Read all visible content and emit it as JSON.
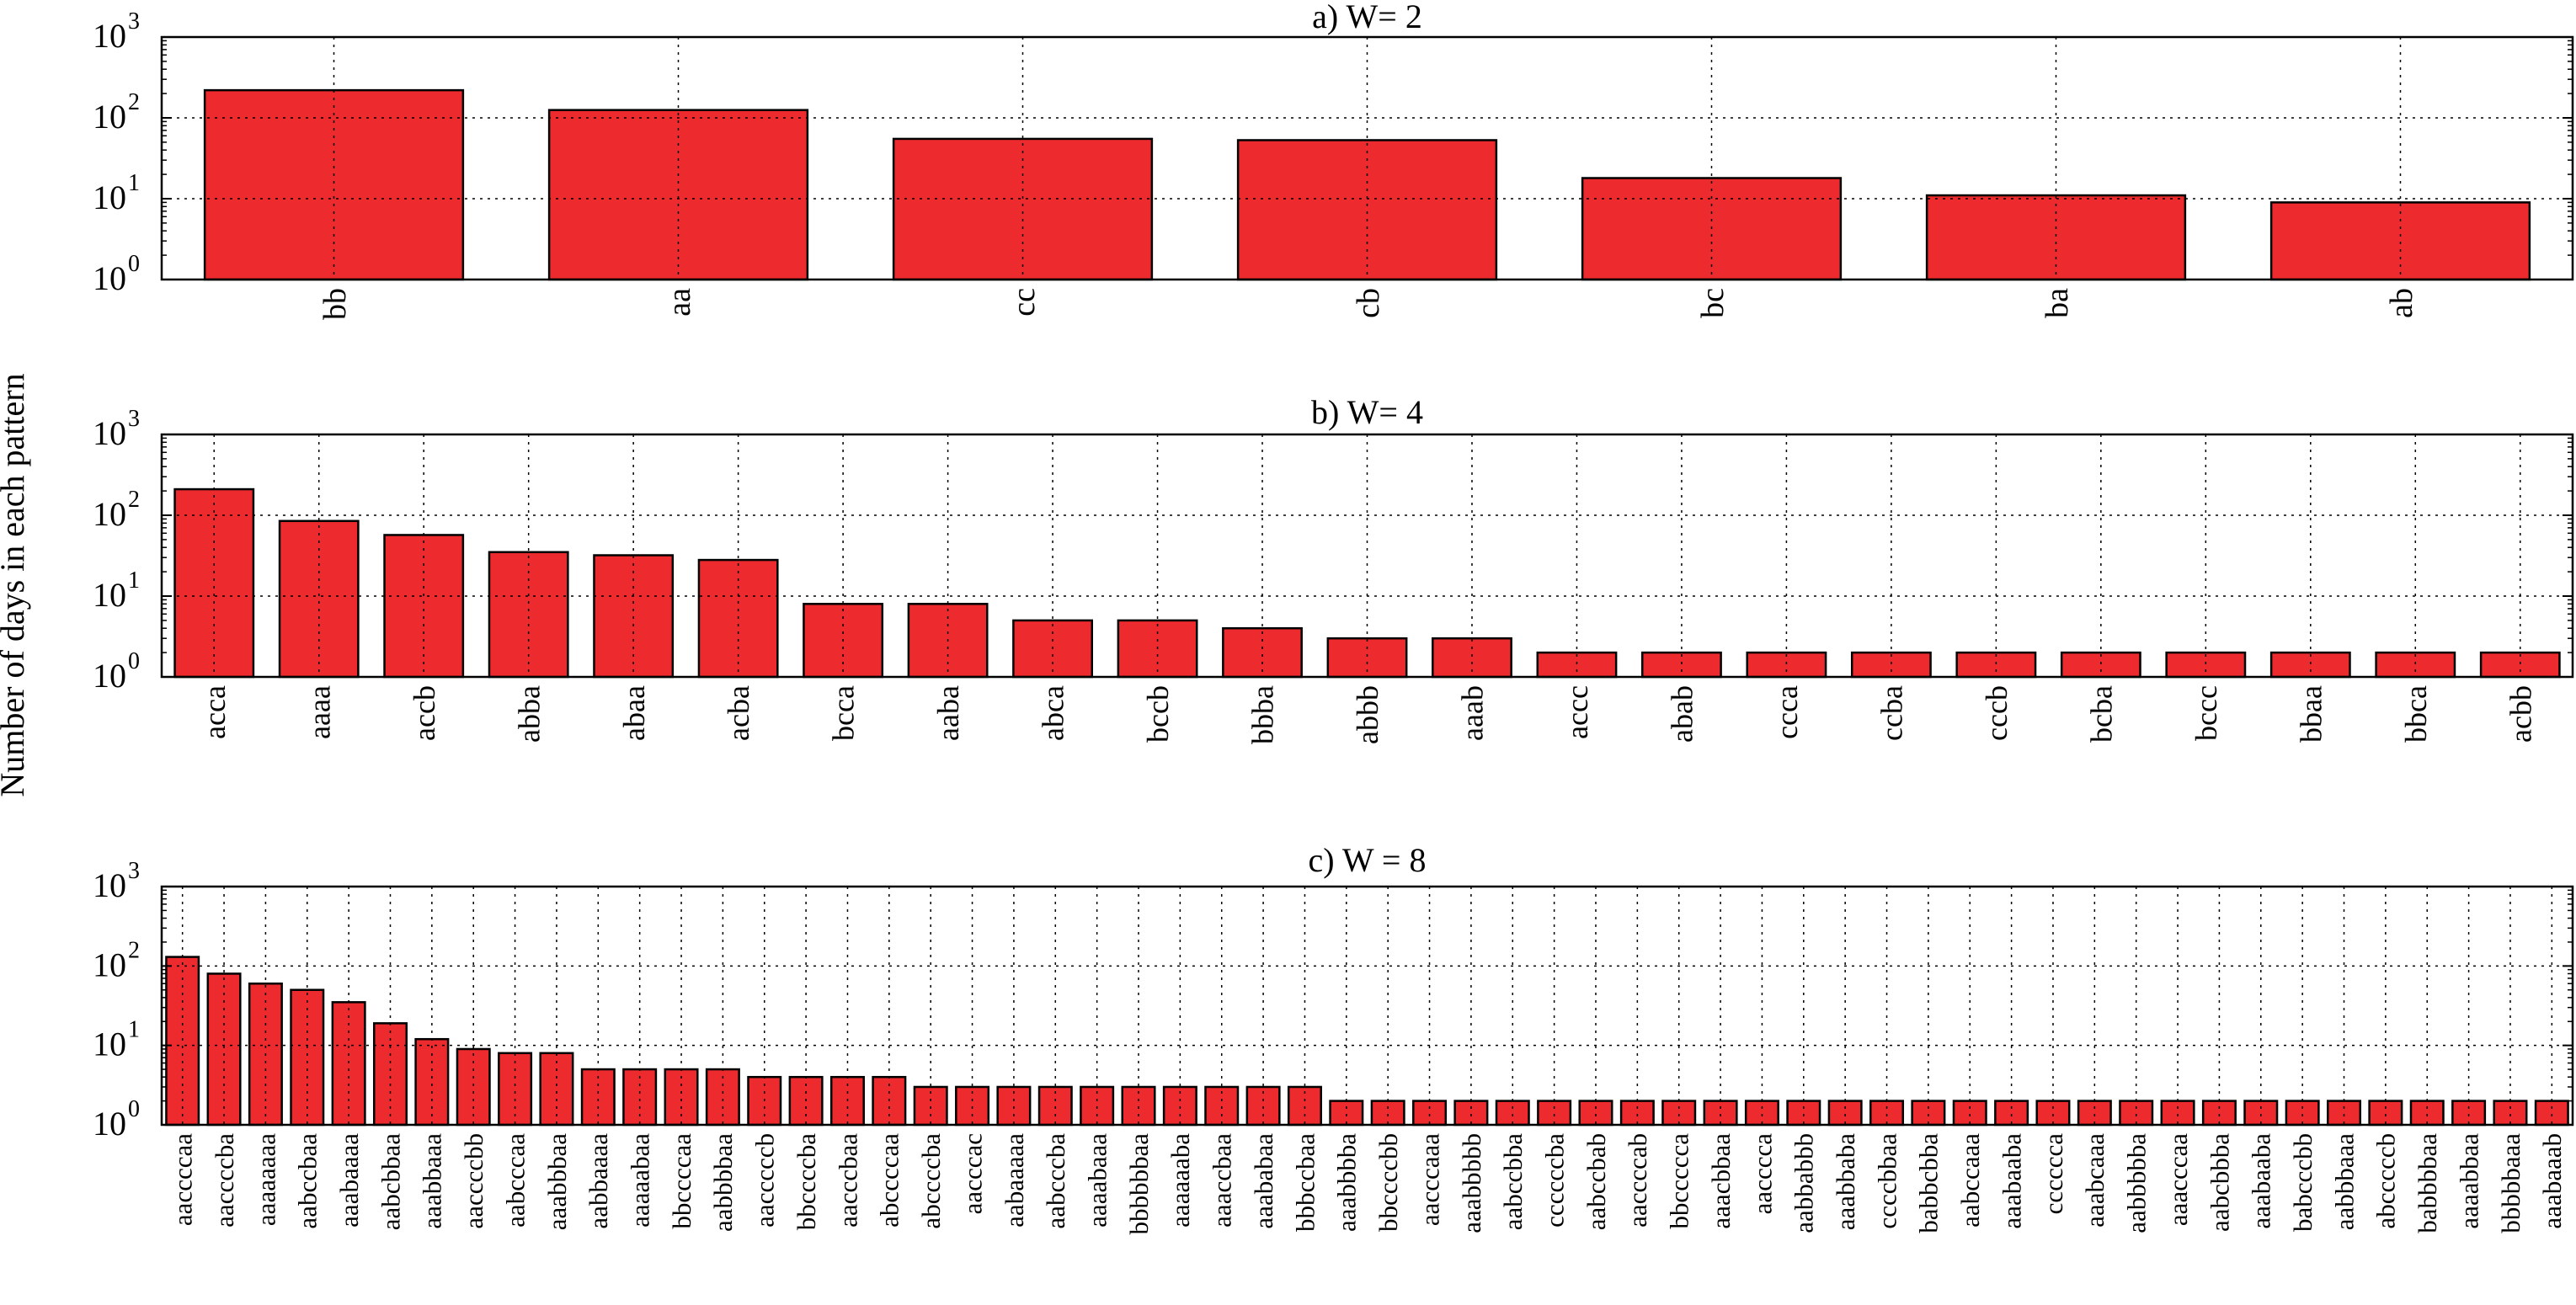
{
  "ylabel": "Number of days in each pattern",
  "tick_labels": {
    "base": "10",
    "exponents": [
      "0",
      "1",
      "2",
      "3"
    ]
  },
  "colors": {
    "bar": "#ed2b2e",
    "edge": "#000000",
    "grid": "#000000"
  },
  "chart_data": [
    {
      "type": "bar",
      "title": "a) W= 2",
      "xlabel": "",
      "ylabel": "Number of days in each pattern",
      "yscale": "log",
      "ylim": [
        1,
        1000
      ],
      "grid": true,
      "categories": [
        "bb",
        "aa",
        "cc",
        "cb",
        "bc",
        "ba",
        "ab"
      ],
      "values": [
        220,
        125,
        55,
        53,
        18,
        11,
        9
      ]
    },
    {
      "type": "bar",
      "title": "b) W= 4",
      "xlabel": "",
      "ylabel": "Number of days in each pattern",
      "yscale": "log",
      "ylim": [
        1,
        1000
      ],
      "grid": true,
      "categories": [
        "acca",
        "aaaa",
        "accb",
        "abba",
        "abaa",
        "acba",
        "bcca",
        "aaba",
        "abca",
        "bccb",
        "bbba",
        "abbb",
        "aaab",
        "accc",
        "abab",
        "ccca",
        "ccba",
        "cccb",
        "bcba",
        "bccc",
        "bbaa",
        "bbca",
        "acbb"
      ],
      "values": [
        210,
        85,
        57,
        35,
        32,
        28,
        8,
        8,
        5,
        5,
        4,
        3,
        3,
        2,
        2,
        2,
        2,
        2,
        2,
        2,
        2,
        2,
        2
      ]
    },
    {
      "type": "bar",
      "title": "c) W = 8",
      "xlabel": "",
      "ylabel": "Number of days in each pattern",
      "yscale": "log",
      "ylim": [
        1,
        1000
      ],
      "grid": true,
      "categories": [
        "aaccccaa",
        "aaccccba",
        "aaaaaaaa",
        "aabccbaa",
        "aaabaaaa",
        "aabcbbaa",
        "aaabbaaa",
        "aaccccbb",
        "aabcccaa",
        "aaabbbaa",
        "aabbaaaa",
        "aaaaabaa",
        "bbccccaa",
        "aabbbbaa",
        "aacccccb",
        "bbccccba",
        "aacccbaa",
        "abccccaa",
        "abccccba",
        "aacccac",
        "aabaaaaa",
        "aabcccba",
        "aaaabaaa",
        "bbbbbbaa",
        "aaaaaaba",
        "aaaccbaa",
        "aaababaa",
        "bbbccbaa",
        "aaabbbba",
        "bbccccbb",
        "aacccaaa",
        "aaabbbbb",
        "aabccbba",
        "ccccccba",
        "aabccbab",
        "aaccccab",
        "bbccccca",
        "aaacbbaa",
        "aacccca",
        "aabbabbb",
        "aaabbaba",
        "ccccbbaa",
        "babbcbba",
        "aabccaaa",
        "aaabaaba",
        "cccccca",
        "aaabcaaa",
        "aabbbbba",
        "aaacccaa",
        "aabcbbba",
        "aaabaaba",
        "babcccbb",
        "aabbbaaa",
        "abcccccb",
        "babbbbaa",
        "aaaabbaa",
        "bbbbbaaa",
        "aaabaaab"
      ],
      "values": [
        130,
        80,
        60,
        50,
        35,
        19,
        12,
        9,
        8,
        8,
        5,
        5,
        5,
        5,
        4,
        4,
        4,
        4,
        3,
        3,
        3,
        3,
        3,
        3,
        3,
        3,
        3,
        3,
        2,
        2,
        2,
        2,
        2,
        2,
        2,
        2,
        2,
        2,
        2,
        2,
        2,
        2,
        2,
        2,
        2,
        2,
        2,
        2,
        2,
        2,
        2,
        2,
        2,
        2,
        2,
        2,
        2,
        2
      ]
    }
  ]
}
